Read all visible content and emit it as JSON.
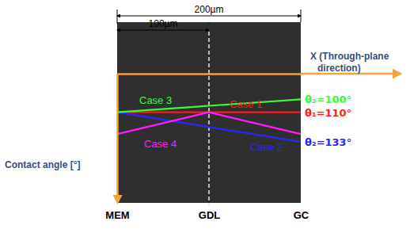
{
  "chart_data": {
    "type": "line",
    "x": [
      0,
      100,
      200
    ],
    "xlim": [
      0,
      200
    ],
    "xticks": [
      {
        "value": 0,
        "label": "MEM"
      },
      {
        "value": 100,
        "label": "GDL"
      },
      {
        "value": 200,
        "label": "GC"
      }
    ],
    "xlabel": "X (Through-plane direction)",
    "ylabel": "Contact angle [°]",
    "ylim": [
      80,
      180
    ],
    "yticks": [],
    "tick_labels": "x",
    "series": [
      {
        "name": "Case 1",
        "color": "#ff1a1a",
        "values": [
          110,
          110,
          110
        ],
        "end_label": "θ₁=110°"
      },
      {
        "name": "Case 2",
        "color": "#2626ff",
        "values": [
          110,
          121.5,
          133
        ],
        "end_label": "θ₂=133°"
      },
      {
        "name": "Case 3",
        "color": "#33ff33",
        "values": [
          110,
          105,
          100
        ],
        "end_label": "θ₃=100°"
      },
      {
        "name": "Case 4",
        "color": "#ff1aff",
        "values": [
          127,
          110,
          127
        ]
      }
    ],
    "dimensions": [
      {
        "from": 0,
        "to": 100,
        "label": "100µm"
      },
      {
        "from": 0,
        "to": 200,
        "label": "200µm"
      }
    ]
  }
}
